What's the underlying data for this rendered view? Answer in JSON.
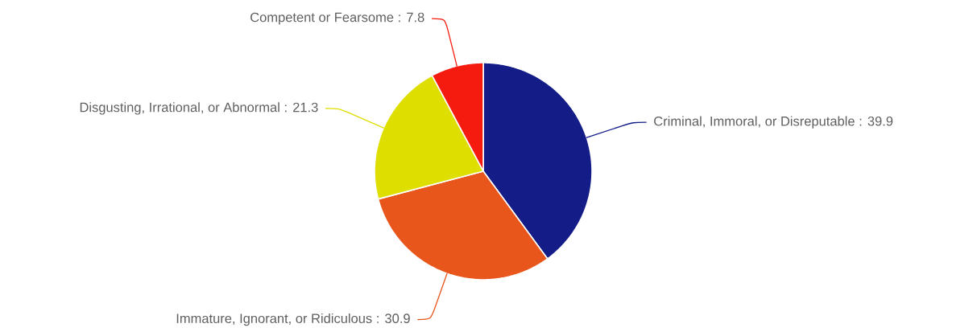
{
  "chart_data": {
    "type": "pie",
    "categories": [
      "Criminal, Immoral, or Disreputable",
      "Immature, Ignorant, or Ridiculous",
      "Disgusting, Irrational, or Abnormal",
      "Competent or Fearsome"
    ],
    "values": [
      39.9,
      30.9,
      21.3,
      7.8
    ],
    "value_labels": [
      ": 39.9",
      ": 30.9",
      ": 21.3",
      ": 7.8"
    ],
    "colors": [
      "#141c87",
      "#e8561c",
      "#dede00",
      "#f51c0f"
    ]
  }
}
